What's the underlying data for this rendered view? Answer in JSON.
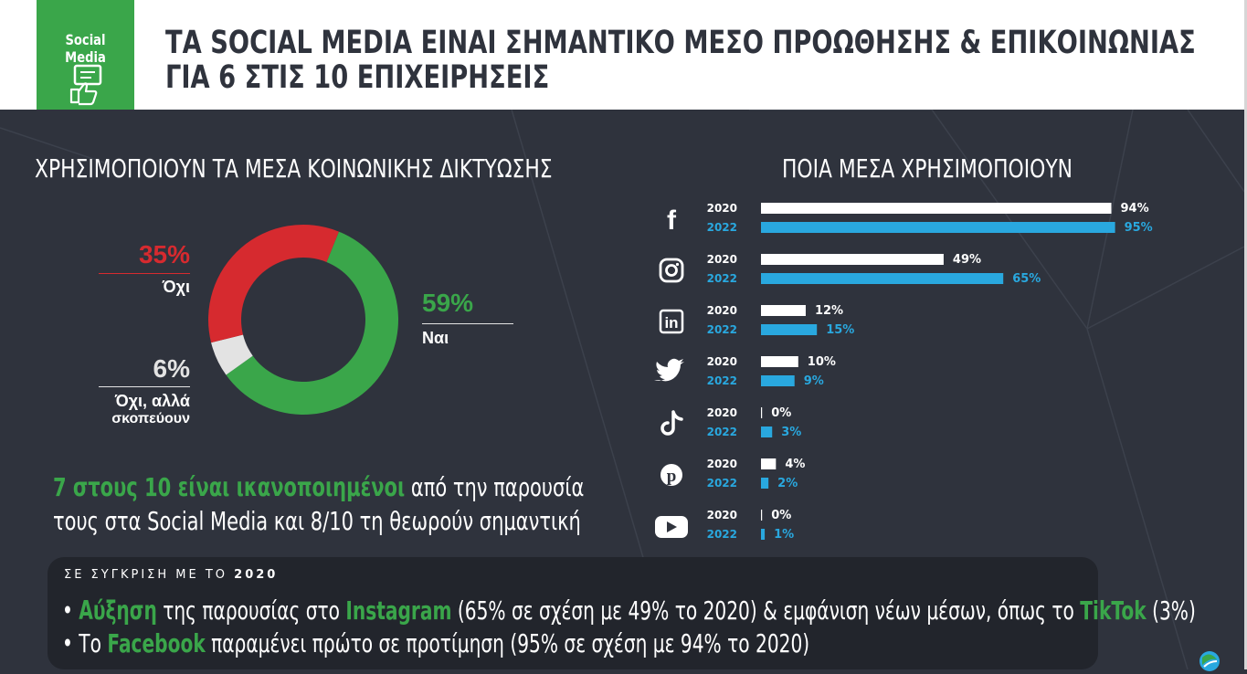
{
  "header": {
    "tag_label": "Social Media",
    "title_line1": "ΤΑ SOCIAL MEDIA ΕΙΝΑΙ ΣΗΜΑΝΤΙΚΟ ΜΕΣΟ ΠΡΟΩΘΗΣΗΣ & ΕΠΙΚΟΙΝΩΝΙΑΣ",
    "title_line2": "ΓΙΑ 6 ΣΤΙΣ 10 ΕΠΙΧΕΙΡΗΣΕΙΣ"
  },
  "usage": {
    "title": "ΧΡΗΣΙΜΟΠΟΙΟΥΝ ΤΑ ΜΕΣΑ ΚΟΙΝΩΝΙΚΗΣ ΔΙΚΤΥΩΣΗΣ",
    "no_pct": "35%",
    "no_label": "Όχι",
    "plan_pct": "6%",
    "plan_label_1": "Όχι, αλλά",
    "plan_label_2": "σκοπεύουν",
    "yes_pct": "59%",
    "yes_label": "Ναι"
  },
  "platforms": {
    "title": "ΠΟΙΑ ΜΕΣΑ ΧΡΗΣΙΜΟΠΟΙΟΥΝ"
  },
  "satisfaction": {
    "highlight": "7 στους 10 είναι ικανοποιημένοι",
    "rest_line1": " από την παρουσία",
    "line2": "τους στα Social Media και 8/10 τη θεωρούν σημαντική"
  },
  "comparison": {
    "head_prefix": "ΣΕ ΣΥΓΚΡΙΣΗ ΜΕ ΤΟ",
    "head_year": "2020",
    "b1_w1": "Αύξηση",
    "b1_t1": " της παρουσίας στο ",
    "b1_w2": "Instagram",
    "b1_t2": " (65% σε σχέση με 49% το 2020) & εμφάνιση νέων μέσων, όπως το ",
    "b1_w3": "TikTok",
    "b1_t3": " (3%)",
    "b2_t1": "Το ",
    "b2_w1": "Facebook",
    "b2_t2": " παραμένει πρώτο σε προτίμηση (95% σε σχέση με 94% το 2020)"
  },
  "colors": {
    "green": "#3aa64a",
    "red": "#d62a2f",
    "grey": "#e3e3e3",
    "blue": "#29a8df",
    "bg": "#2f333d"
  },
  "chart_data": [
    {
      "type": "pie",
      "categories": [
        "Ναι",
        "Όχι",
        "Όχι, αλλά σκοπεύουν"
      ],
      "values": [
        59,
        35,
        6
      ],
      "colors": [
        "#3aa64a",
        "#d62a2f",
        "#e3e3e3"
      ]
    },
    {
      "type": "bar",
      "orientation": "horizontal",
      "categories": [
        "facebook-icon",
        "instagram-icon",
        "linkedin-icon",
        "twitter-icon",
        "tiktok-icon",
        "pinterest-icon",
        "youtube-icon"
      ],
      "series": [
        {
          "name": "2020",
          "values": [
            94,
            49,
            12,
            10,
            0,
            4,
            0
          ],
          "labels": [
            "94%",
            "49%",
            "12%",
            "10%",
            "0%",
            "4%",
            "0%"
          ],
          "color": "#ffffff"
        },
        {
          "name": "2022",
          "values": [
            95,
            65,
            15,
            9,
            3,
            2,
            1
          ],
          "labels": [
            "95%",
            "65%",
            "15%",
            "9%",
            "3%",
            "2%",
            "1%"
          ],
          "color": "#29a8df"
        }
      ],
      "xlim": [
        0,
        100
      ]
    }
  ]
}
